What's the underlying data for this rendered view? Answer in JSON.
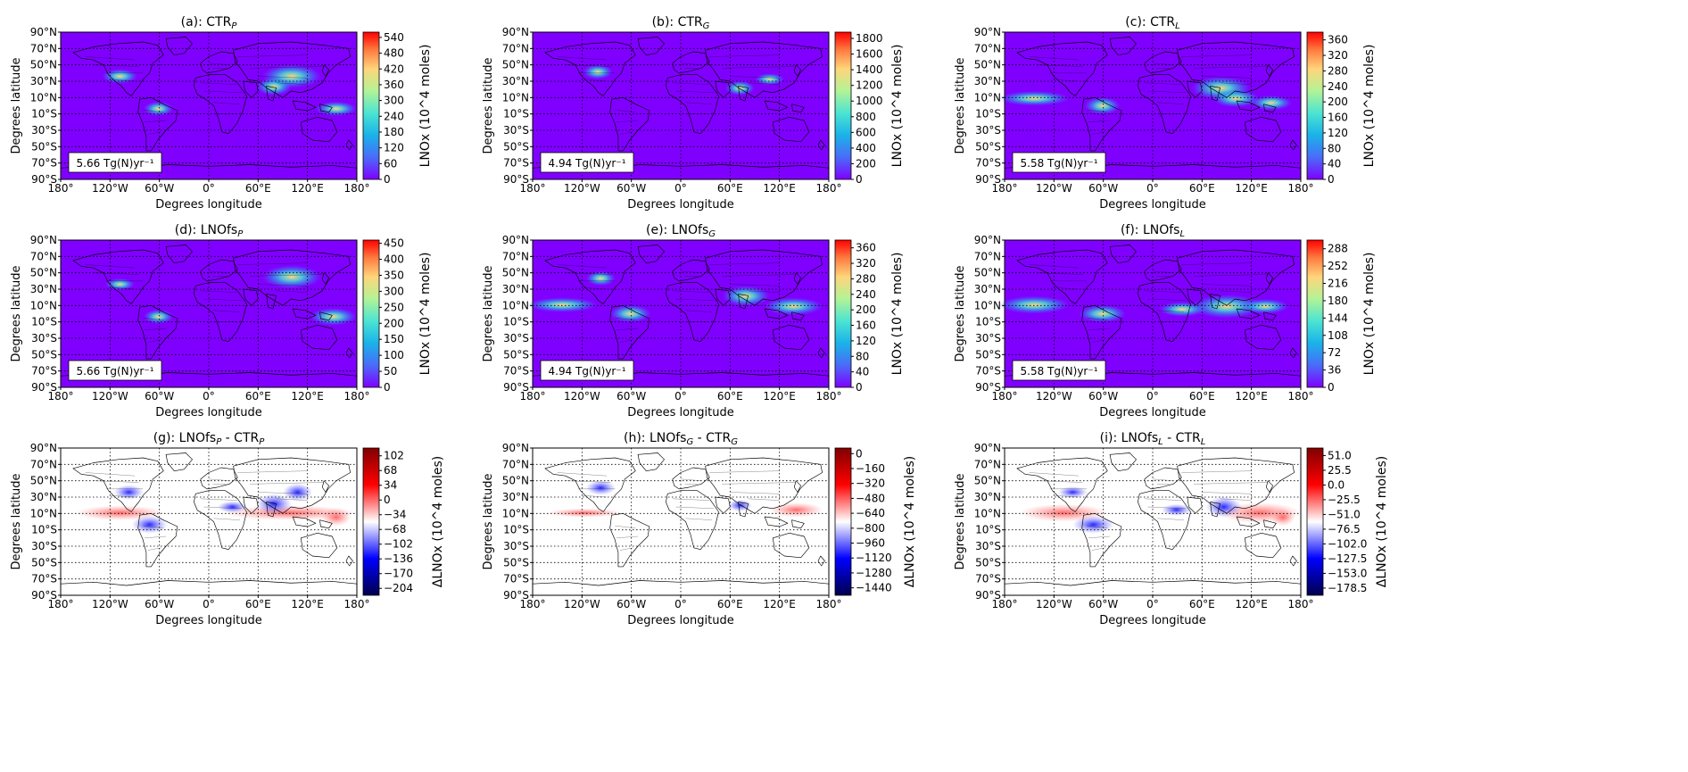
{
  "figure": {
    "xlabel": "Degrees longitude",
    "ylabel": "Degrees latitude",
    "lon_ticks": [
      "180°",
      "120°W",
      "60°W",
      "0°",
      "60°E",
      "120°E",
      "180°"
    ],
    "lat_ticks": [
      "90°N",
      "70°N",
      "50°N",
      "30°N",
      "10°N",
      "10°S",
      "30°S",
      "50°S",
      "70°S",
      "90°S"
    ]
  },
  "chart_data": [
    {
      "id": "a",
      "type": "heatmap",
      "title_base": "(a): CTR",
      "title_sub": "P",
      "title_tail": "",
      "colormap": "rainbow",
      "cbar_label": "LNOx (10^4 moles)",
      "cbar_ticks": [
        0,
        60,
        120,
        180,
        240,
        300,
        360,
        420,
        480,
        540
      ],
      "cbar_range": [
        0,
        560
      ],
      "total_label": "5.66 Tg(N)yr⁻¹"
    },
    {
      "id": "b",
      "type": "heatmap",
      "title_base": "(b): CTR",
      "title_sub": "G",
      "title_tail": "",
      "colormap": "rainbow",
      "cbar_label": "LNOx (10^4 moles)",
      "cbar_ticks": [
        0,
        200,
        400,
        600,
        800,
        1000,
        1200,
        1400,
        1600,
        1800
      ],
      "cbar_range": [
        0,
        1880
      ],
      "total_label": "4.94 Tg(N)yr⁻¹"
    },
    {
      "id": "c",
      "type": "heatmap",
      "title_base": "(c): CTR",
      "title_sub": "L",
      "title_tail": "",
      "colormap": "rainbow",
      "cbar_label": "LNOx (10^4 moles)",
      "cbar_ticks": [
        0,
        40,
        80,
        120,
        160,
        200,
        240,
        280,
        320,
        360
      ],
      "cbar_range": [
        0,
        380
      ],
      "total_label": "5.58 Tg(N)yr⁻¹"
    },
    {
      "id": "d",
      "type": "heatmap",
      "title_base": "(d): LNOfs",
      "title_sub": "P",
      "title_tail": "",
      "colormap": "rainbow",
      "cbar_label": "LNOx (10^4 moles)",
      "cbar_ticks": [
        0,
        50,
        100,
        150,
        200,
        250,
        300,
        350,
        400,
        450
      ],
      "cbar_range": [
        0,
        460
      ],
      "total_label": "5.66 Tg(N)yr⁻¹"
    },
    {
      "id": "e",
      "type": "heatmap",
      "title_base": "(e): LNOfs",
      "title_sub": "G",
      "title_tail": "",
      "colormap": "rainbow",
      "cbar_label": "LNOx (10^4 moles)",
      "cbar_ticks": [
        0,
        40,
        80,
        120,
        160,
        200,
        240,
        280,
        320,
        360
      ],
      "cbar_range": [
        0,
        380
      ],
      "total_label": "4.94 Tg(N)yr⁻¹"
    },
    {
      "id": "f",
      "type": "heatmap",
      "title_base": "(f): LNOfs",
      "title_sub": "L",
      "title_tail": "",
      "colormap": "rainbow",
      "cbar_label": "LNOx (10^4 moles)",
      "cbar_ticks": [
        0,
        36,
        72,
        108,
        144,
        180,
        216,
        252,
        288
      ],
      "cbar_range": [
        0,
        306
      ],
      "total_label": "5.58 Tg(N)yr⁻¹"
    },
    {
      "id": "g",
      "type": "heatmap",
      "title_base": "(g): LNOfs",
      "title_sub": "P",
      "title_tail": " - CTR",
      "title_sub2": "P",
      "colormap": "seismic",
      "cbar_label": "ΔLNOx (10^4 moles)",
      "cbar_ticks": [
        -204,
        -170,
        -136,
        -102,
        -68,
        -34,
        0,
        34,
        68,
        102
      ],
      "cbar_range": [
        -220,
        120
      ],
      "total_label": ""
    },
    {
      "id": "h",
      "type": "heatmap",
      "title_base": "(h): LNOfs",
      "title_sub": "G",
      "title_tail": " - CTR",
      "title_sub2": "G",
      "colormap": "seismic",
      "cbar_label": "ΔLNOx (10^4 moles)",
      "cbar_ticks": [
        -1440,
        -1280,
        -1120,
        -960,
        -800,
        -640,
        -480,
        -320,
        -160,
        0
      ],
      "cbar_range": [
        -1520,
        60
      ],
      "total_label": ""
    },
    {
      "id": "i",
      "type": "heatmap",
      "title_base": "(i): LNOfs",
      "title_sub": "L",
      "title_tail": " - CTR",
      "title_sub2": "L",
      "colormap": "seismic",
      "cbar_label": "ΔLNOx (10^4 moles)",
      "cbar_ticks": [
        -178.5,
        -153.0,
        -127.5,
        -102.0,
        -76.5,
        -51.0,
        -25.5,
        0.0,
        25.5,
        51.0
      ],
      "cbar_range": [
        -191,
        64
      ],
      "total_label": ""
    }
  ]
}
